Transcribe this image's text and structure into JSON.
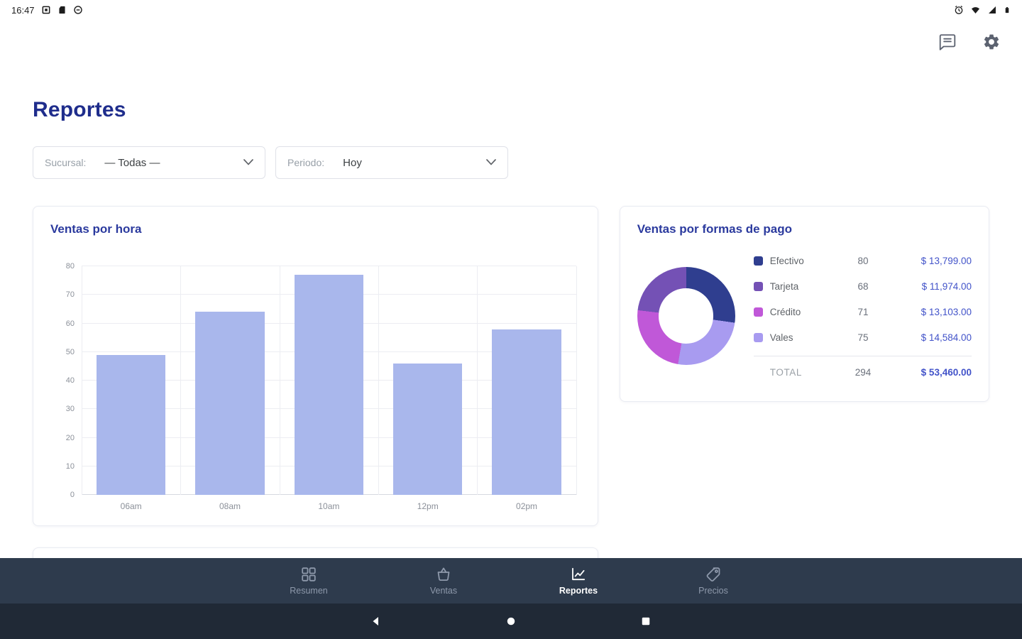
{
  "status_bar": {
    "time": "16:47",
    "left_icons": [
      "screenshot-icon",
      "sd-card-icon",
      "dnd-circle-icon"
    ],
    "right_icons": [
      "alarm-icon",
      "wifi-icon",
      "signal-icon",
      "battery-icon"
    ]
  },
  "header": {
    "icons": [
      "feedback-icon",
      "settings-gear-icon"
    ]
  },
  "page": {
    "title": "Reportes"
  },
  "filters": {
    "sucursal": {
      "label": "Sucursal:",
      "value": "— Todas —"
    },
    "periodo": {
      "label": "Periodo:",
      "value": "Hoy"
    }
  },
  "chart_data": [
    {
      "type": "bar",
      "title": "Ventas por hora",
      "categories": [
        "06am",
        "08am",
        "10am",
        "12pm",
        "02pm"
      ],
      "values": [
        49,
        64,
        77,
        46,
        58
      ],
      "xlabel": "",
      "ylabel": "",
      "ylim": [
        0,
        80
      ],
      "ytick_step": 10,
      "grid": true,
      "bar_color": "#a9b7ec"
    },
    {
      "type": "pie",
      "title": "Ventas por formas de pago",
      "legend_position": "right",
      "series": [
        {
          "name": "Efectivo",
          "count": 80,
          "amount": "$ 13,799.00",
          "color": "#2f3e8f"
        },
        {
          "name": "Tarjeta",
          "count": 68,
          "amount": "$ 11,974.00",
          "color": "#7451b5"
        },
        {
          "name": "Crédito",
          "count": 71,
          "amount": "$ 13,103.00",
          "color": "#c058d8"
        },
        {
          "name": "Vales",
          "count": 75,
          "amount": "$ 14,584.00",
          "color": "#a89bf0"
        }
      ],
      "clockwise_order": [
        "Efectivo",
        "Vales",
        "Crédito",
        "Tarjeta"
      ],
      "total": {
        "label": "TOTAL",
        "count": 294,
        "amount": "$ 53,460.00"
      }
    }
  ],
  "bottom_nav": {
    "items": [
      {
        "label": "Resumen",
        "icon": "grid",
        "active": false
      },
      {
        "label": "Ventas",
        "icon": "basket",
        "active": false
      },
      {
        "label": "Reportes",
        "icon": "chart",
        "active": true
      },
      {
        "label": "Precios",
        "icon": "tag",
        "active": false
      }
    ]
  },
  "system_nav": {
    "buttons": [
      "back",
      "home",
      "recents"
    ]
  },
  "colors": {
    "title_blue": "#1f2d8c",
    "amount_blue": "#4253c9",
    "nav_bg": "#2e3b4d",
    "system_bar_bg": "#202936"
  }
}
